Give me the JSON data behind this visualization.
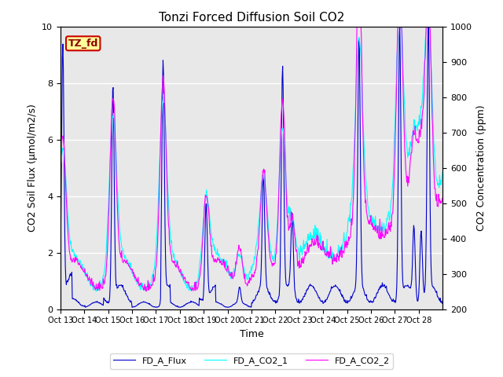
{
  "title": "Tonzi Forced Diffusion Soil CO2",
  "xlabel": "Time",
  "ylabel_left": "CO2 Soil Flux (μmol/m2/s)",
  "ylabel_right": "CO2 Concentration (ppm)",
  "ylim_left": [
    0.0,
    10.0
  ],
  "ylim_right": [
    200,
    1000
  ],
  "legend_labels": [
    "FD_A_Flux",
    "FD_A_CO2_1",
    "FD_A_CO2_2"
  ],
  "line_colors": [
    "#0000CD",
    "#00FFFF",
    "#FF00FF"
  ],
  "tag_label": "TZ_fd",
  "tag_bg": "#FFFF99",
  "tag_border": "#CC0000",
  "xtick_labels": [
    "Oct 13",
    "Oct 14",
    "Oct 15",
    "Oct 16",
    "Oct 17",
    "Oct 18",
    "Oct 19",
    "Oct 20",
    "Oct 21",
    "Oct 22",
    "Oct 23",
    "Oct 24",
    "Oct 25",
    "Oct 26",
    "Oct 27",
    "Oct 28"
  ],
  "background_color": "#E8E8E8",
  "grid_color": "#FFFFFF",
  "n_days": 16
}
